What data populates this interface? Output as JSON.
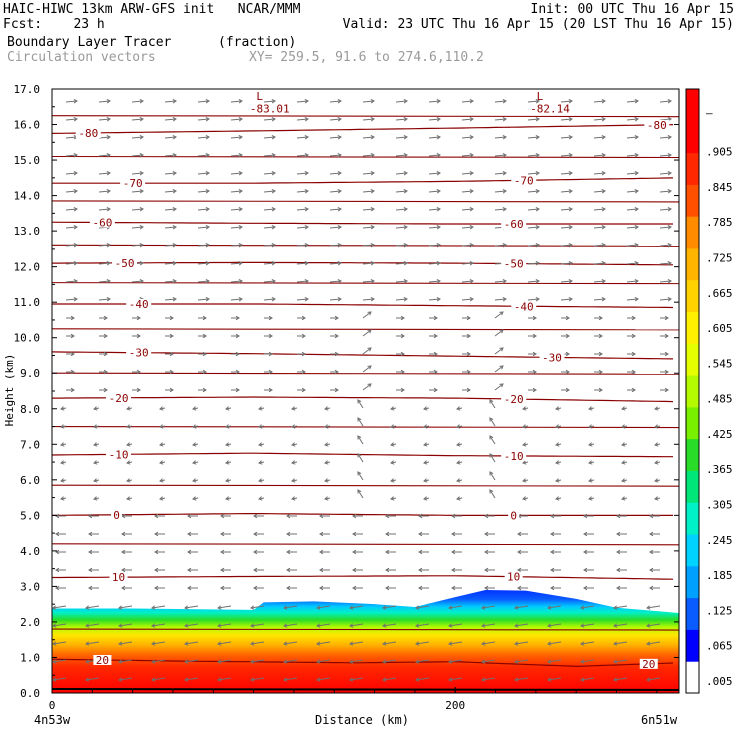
{
  "header": {
    "left_line1": "HAIC-HIWC 13km ARW-GFS init   NCAR/MMM",
    "left_line2": "Fcst:    23 h",
    "right_line1": "Init: 00 UTC Thu 16 Apr 15",
    "right_line2": "Valid: 23 UTC Thu 16 Apr 15 (20 LST Thu 16 Apr 15)",
    "field_name": "Boundary Layer Tracer",
    "field_units": "(fraction)",
    "vector_label": "Circulation vectors",
    "xy_label": "XY= 259.5, 91.6 to 274.6,110.2"
  },
  "colors": {
    "contour": "#8b0000",
    "vector": "#707070"
  },
  "chart_data": {
    "type": "heatmap",
    "title": "Boundary Layer Tracer",
    "units": "fraction",
    "ylabel": "Height (km)",
    "xlabel": "Distance (km)",
    "x_left_label": "4n53w",
    "x_right_label": "6n51w",
    "xlim": [
      0,
      311
    ],
    "ylim": [
      0,
      17
    ],
    "x_ticks": [
      0,
      200
    ],
    "y_ticks": [
      "0.0",
      "1.0",
      "2.0",
      "3.0",
      "4.0",
      "5.0",
      "6.0",
      "7.0",
      "8.0",
      "9.0",
      "10.0",
      "11.0",
      "12.0",
      "13.0",
      "14.0",
      "15.0",
      "16.0",
      "17.0"
    ],
    "colorbar": {
      "labels": [
        ".005",
        ".065",
        ".125",
        ".185",
        ".245",
        ".305",
        ".365",
        ".425",
        ".485",
        ".545",
        ".605",
        ".665",
        ".725",
        ".785",
        ".845",
        ".905",
        "–"
      ],
      "colors": [
        "#ffffff",
        "#0000ff",
        "#0a5cff",
        "#00a0ff",
        "#00d2ff",
        "#00f0c8",
        "#00e678",
        "#28dc28",
        "#78f000",
        "#b4fa00",
        "#e6ff00",
        "#fff000",
        "#ffd200",
        "#ffb400",
        "#ff8c00",
        "#ff5000",
        "#ff2800",
        "#ff0000",
        "#ff0000"
      ]
    },
    "tracer_top_km": [
      [
        0,
        2.38
      ],
      [
        40,
        2.38
      ],
      [
        100,
        2.34
      ],
      [
        105,
        2.55
      ],
      [
        130,
        2.58
      ],
      [
        160,
        2.5
      ],
      [
        180,
        2.42
      ],
      [
        200,
        2.7
      ],
      [
        215,
        2.9
      ],
      [
        235,
        2.88
      ],
      [
        260,
        2.65
      ],
      [
        280,
        2.4
      ],
      [
        311,
        2.25
      ]
    ],
    "temperature_contours": [
      {
        "label": "20",
        "points": [
          [
            0,
            0.95
          ],
          [
            60,
            0.9
          ],
          [
            150,
            0.85
          ],
          [
            200,
            0.88
          ],
          [
            260,
            0.75
          ],
          [
            311,
            0.85
          ]
        ],
        "label_x": [
          25,
          296
        ]
      },
      {
        "label": "10",
        "points": [
          [
            0,
            3.25
          ],
          [
            100,
            3.28
          ],
          [
            200,
            3.3
          ],
          [
            311,
            3.2
          ]
        ],
        "label_x": [
          33,
          229
        ]
      },
      {
        "label": "0",
        "points": [
          [
            0,
            5.0
          ],
          [
            100,
            5.05
          ],
          [
            200,
            5.0
          ],
          [
            311,
            5.0
          ]
        ],
        "label_x": [
          32,
          229
        ]
      },
      {
        "label": "-10",
        "points": [
          [
            0,
            6.7
          ],
          [
            100,
            6.75
          ],
          [
            200,
            6.68
          ],
          [
            311,
            6.65
          ]
        ],
        "label_x": [
          33,
          229
        ]
      },
      {
        "label": "-20",
        "points": [
          [
            0,
            8.3
          ],
          [
            100,
            8.33
          ],
          [
            200,
            8.3
          ],
          [
            311,
            8.2
          ]
        ],
        "label_x": [
          33,
          229
        ]
      },
      {
        "label": "-30",
        "points": [
          [
            0,
            9.6
          ],
          [
            100,
            9.55
          ],
          [
            200,
            9.48
          ],
          [
            311,
            9.4
          ]
        ],
        "label_x": [
          43,
          248
        ]
      },
      {
        "label": "-40",
        "points": [
          [
            0,
            10.95
          ],
          [
            100,
            10.95
          ],
          [
            200,
            10.9
          ],
          [
            311,
            10.85
          ]
        ],
        "label_x": [
          43,
          234
        ]
      },
      {
        "label": "-50",
        "points": [
          [
            0,
            12.1
          ],
          [
            100,
            12.12
          ],
          [
            200,
            12.1
          ],
          [
            311,
            12.05
          ]
        ],
        "label_x": [
          36,
          229
        ]
      },
      {
        "label": "-60",
        "points": [
          [
            0,
            13.25
          ],
          [
            100,
            13.22
          ],
          [
            200,
            13.2
          ],
          [
            311,
            13.2
          ]
        ],
        "label_x": [
          25,
          229
        ]
      },
      {
        "label": "-70",
        "points": [
          [
            0,
            14.35
          ],
          [
            100,
            14.35
          ],
          [
            200,
            14.4
          ],
          [
            311,
            14.5
          ]
        ],
        "label_x": [
          40,
          234
        ]
      },
      {
        "label": "-80",
        "points": [
          [
            0,
            15.75
          ],
          [
            100,
            15.82
          ],
          [
            200,
            15.9
          ],
          [
            311,
            16.0
          ]
        ],
        "label_x": [
          18,
          300
        ]
      }
    ],
    "extra_contours_km": [
      1.8,
      4.2,
      5.85,
      7.5,
      9.0,
      10.25,
      11.55,
      12.6,
      13.85,
      15.1,
      16.25
    ],
    "annotations": [
      {
        "text": "L",
        "x": 103,
        "y": 16.8
      },
      {
        "text": "-83.01",
        "x": 108,
        "y": 16.45
      },
      {
        "text": "L",
        "x": 242,
        "y": 16.8
      },
      {
        "text": "-82.14",
        "x": 247,
        "y": 16.45
      }
    ]
  }
}
